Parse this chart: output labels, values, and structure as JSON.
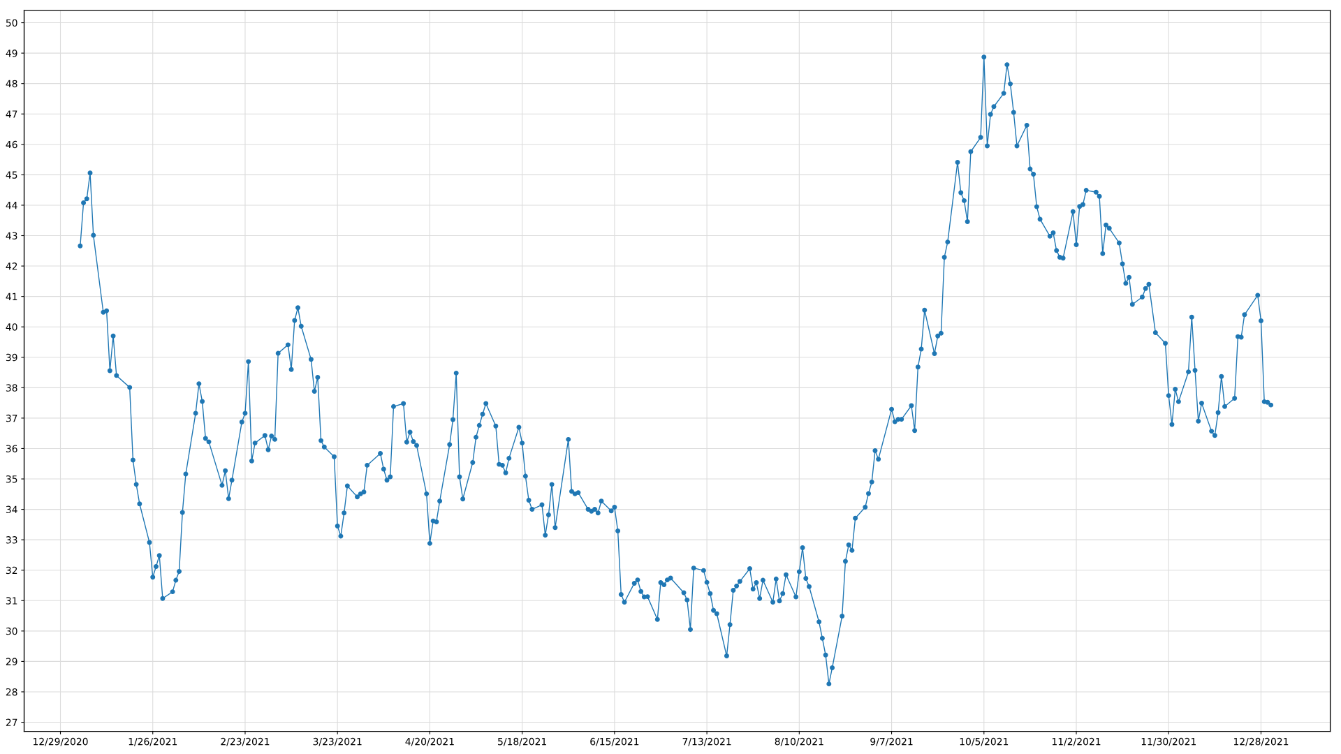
{
  "chart_data": {
    "type": "line",
    "marker": "circle",
    "line_style": "solid",
    "grid": true,
    "xlim": [
      "2020-12-18",
      "2022-01-18"
    ],
    "xticks": [
      {
        "value": "2020-12-29",
        "label": "12/29/2020"
      },
      {
        "value": "2021-01-26",
        "label": "1/26/2021"
      },
      {
        "value": "2021-02-23",
        "label": "2/23/2021"
      },
      {
        "value": "2021-03-23",
        "label": "3/23/2021"
      },
      {
        "value": "2021-04-20",
        "label": "4/20/2021"
      },
      {
        "value": "2021-05-18",
        "label": "5/18/2021"
      },
      {
        "value": "2021-06-15",
        "label": "6/15/2021"
      },
      {
        "value": "2021-07-13",
        "label": "7/13/2021"
      },
      {
        "value": "2021-08-10",
        "label": "8/10/2021"
      },
      {
        "value": "2021-09-07",
        "label": "9/7/2021"
      },
      {
        "value": "2021-10-05",
        "label": "10/5/2021"
      },
      {
        "value": "2021-11-02",
        "label": "11/2/2021"
      },
      {
        "value": "2021-11-30",
        "label": "11/30/2021"
      },
      {
        "value": "2021-12-28",
        "label": "12/28/2021"
      }
    ],
    "ylim": [
      26.7,
      50.4
    ],
    "yticks": [
      27,
      28,
      29,
      30,
      31,
      32,
      33,
      34,
      35,
      36,
      37,
      38,
      39,
      40,
      41,
      42,
      43,
      44,
      45,
      46,
      47,
      48,
      49,
      50
    ],
    "series": [
      {
        "color": "#1f77b4",
        "x": [
          "2021-01-04",
          "2021-01-05",
          "2021-01-06",
          "2021-01-07",
          "2021-01-08",
          "2021-01-11",
          "2021-01-12",
          "2021-01-13",
          "2021-01-14",
          "2021-01-15",
          "2021-01-19",
          "2021-01-20",
          "2021-01-21",
          "2021-01-22",
          "2021-01-25",
          "2021-01-26",
          "2021-01-27",
          "2021-01-28",
          "2021-01-29",
          "2021-02-01",
          "2021-02-02",
          "2021-02-03",
          "2021-02-04",
          "2021-02-05",
          "2021-02-08",
          "2021-02-09",
          "2021-02-10",
          "2021-02-11",
          "2021-02-12",
          "2021-02-16",
          "2021-02-17",
          "2021-02-18",
          "2021-02-19",
          "2021-02-22",
          "2021-02-23",
          "2021-02-24",
          "2021-02-25",
          "2021-02-26",
          "2021-03-01",
          "2021-03-02",
          "2021-03-03",
          "2021-03-04",
          "2021-03-05",
          "2021-03-08",
          "2021-03-09",
          "2021-03-10",
          "2021-03-11",
          "2021-03-12",
          "2021-03-15",
          "2021-03-16",
          "2021-03-17",
          "2021-03-18",
          "2021-03-19",
          "2021-03-22",
          "2021-03-23",
          "2021-03-24",
          "2021-03-25",
          "2021-03-26",
          "2021-03-29",
          "2021-03-30",
          "2021-03-31",
          "2021-04-01",
          "2021-04-05",
          "2021-04-06",
          "2021-04-07",
          "2021-04-08",
          "2021-04-09",
          "2021-04-12",
          "2021-04-13",
          "2021-04-14",
          "2021-04-15",
          "2021-04-16",
          "2021-04-19",
          "2021-04-20",
          "2021-04-21",
          "2021-04-22",
          "2021-04-23",
          "2021-04-26",
          "2021-04-27",
          "2021-04-28",
          "2021-04-29",
          "2021-04-30",
          "2021-05-03",
          "2021-05-04",
          "2021-05-05",
          "2021-05-06",
          "2021-05-07",
          "2021-05-10",
          "2021-05-11",
          "2021-05-12",
          "2021-05-13",
          "2021-05-14",
          "2021-05-17",
          "2021-05-18",
          "2021-05-19",
          "2021-05-20",
          "2021-05-21",
          "2021-05-24",
          "2021-05-25",
          "2021-05-26",
          "2021-05-27",
          "2021-05-28",
          "2021-06-01",
          "2021-06-02",
          "2021-06-03",
          "2021-06-04",
          "2021-06-07",
          "2021-06-08",
          "2021-06-09",
          "2021-06-10",
          "2021-06-11",
          "2021-06-14",
          "2021-06-15",
          "2021-06-16",
          "2021-06-17",
          "2021-06-18",
          "2021-06-21",
          "2021-06-22",
          "2021-06-23",
          "2021-06-24",
          "2021-06-25",
          "2021-06-28",
          "2021-06-29",
          "2021-06-30",
          "2021-07-01",
          "2021-07-02",
          "2021-07-06",
          "2021-07-07",
          "2021-07-08",
          "2021-07-09",
          "2021-07-12",
          "2021-07-13",
          "2021-07-14",
          "2021-07-15",
          "2021-07-16",
          "2021-07-19",
          "2021-07-20",
          "2021-07-21",
          "2021-07-22",
          "2021-07-23",
          "2021-07-26",
          "2021-07-27",
          "2021-07-28",
          "2021-07-29",
          "2021-07-30",
          "2021-08-02",
          "2021-08-03",
          "2021-08-04",
          "2021-08-05",
          "2021-08-06",
          "2021-08-09",
          "2021-08-10",
          "2021-08-11",
          "2021-08-12",
          "2021-08-13",
          "2021-08-16",
          "2021-08-17",
          "2021-08-18",
          "2021-08-19",
          "2021-08-20",
          "2021-08-23",
          "2021-08-24",
          "2021-08-25",
          "2021-08-26",
          "2021-08-27",
          "2021-08-30",
          "2021-08-31",
          "2021-09-01",
          "2021-09-02",
          "2021-09-03",
          "2021-09-07",
          "2021-09-08",
          "2021-09-09",
          "2021-09-10",
          "2021-09-13",
          "2021-09-14",
          "2021-09-15",
          "2021-09-16",
          "2021-09-17",
          "2021-09-20",
          "2021-09-21",
          "2021-09-22",
          "2021-09-23",
          "2021-09-24",
          "2021-09-27",
          "2021-09-28",
          "2021-09-29",
          "2021-09-30",
          "2021-10-01",
          "2021-10-04",
          "2021-10-05",
          "2021-10-06",
          "2021-10-07",
          "2021-10-08",
          "2021-10-11",
          "2021-10-12",
          "2021-10-13",
          "2021-10-14",
          "2021-10-15",
          "2021-10-18",
          "2021-10-19",
          "2021-10-20",
          "2021-10-21",
          "2021-10-22",
          "2021-10-25",
          "2021-10-26",
          "2021-10-27",
          "2021-10-28",
          "2021-10-29",
          "2021-11-01",
          "2021-11-02",
          "2021-11-03",
          "2021-11-04",
          "2021-11-05",
          "2021-11-08",
          "2021-11-09",
          "2021-11-10",
          "2021-11-11",
          "2021-11-12",
          "2021-11-15",
          "2021-11-16",
          "2021-11-17",
          "2021-11-18",
          "2021-11-19",
          "2021-11-22",
          "2021-11-23",
          "2021-11-24",
          "2021-11-26",
          "2021-11-29",
          "2021-11-30",
          "2021-12-01",
          "2021-12-02",
          "2021-12-03",
          "2021-12-06",
          "2021-12-07",
          "2021-12-08",
          "2021-12-09",
          "2021-12-10",
          "2021-12-13",
          "2021-12-14",
          "2021-12-15",
          "2021-12-16",
          "2021-12-17",
          "2021-12-20",
          "2021-12-21",
          "2021-12-22",
          "2021-12-23",
          "2021-12-27",
          "2021-12-28",
          "2021-12-29",
          "2021-12-30",
          "2021-12-31"
        ],
        "values": [
          42.66,
          44.08,
          44.21,
          45.06,
          43.01,
          40.48,
          40.53,
          38.56,
          39.7,
          38.4,
          38.01,
          35.62,
          34.82,
          34.18,
          32.91,
          31.77,
          32.12,
          32.48,
          31.07,
          31.29,
          31.67,
          31.96,
          33.9,
          35.16,
          37.16,
          38.13,
          37.55,
          36.33,
          36.22,
          34.79,
          35.27,
          34.35,
          34.96,
          36.87,
          37.16,
          38.86,
          35.59,
          36.18,
          36.43,
          35.96,
          36.41,
          36.3,
          39.13,
          39.41,
          38.6,
          40.21,
          40.63,
          40.02,
          38.93,
          37.88,
          38.34,
          36.26,
          36.05,
          35.73,
          33.45,
          33.12,
          33.88,
          34.77,
          34.41,
          34.51,
          34.57,
          35.45,
          35.84,
          35.32,
          34.96,
          35.07,
          37.38,
          37.48,
          36.21,
          36.54,
          36.23,
          36.1,
          34.51,
          32.88,
          33.62,
          33.59,
          34.27,
          36.13,
          36.95,
          38.48,
          35.07,
          34.34,
          35.54,
          36.37,
          36.76,
          37.13,
          37.48,
          36.74,
          35.48,
          35.45,
          35.2,
          35.68,
          36.7,
          36.18,
          35.09,
          34.3,
          34.0,
          34.15,
          33.15,
          33.82,
          34.82,
          33.4,
          36.3,
          34.59,
          34.51,
          34.55,
          34.0,
          33.94,
          34.0,
          33.88,
          34.27,
          33.95,
          34.07,
          33.29,
          31.2,
          30.95,
          31.57,
          31.68,
          31.3,
          31.12,
          31.13,
          30.38,
          31.59,
          31.52,
          31.68,
          31.74,
          31.26,
          31.02,
          30.05,
          32.07,
          31.99,
          31.6,
          31.23,
          30.68,
          30.57,
          29.18,
          30.21,
          31.34,
          31.48,
          31.63,
          32.05,
          31.38,
          31.59,
          31.07,
          31.67,
          30.95,
          31.71,
          30.99,
          31.23,
          31.85,
          31.12,
          31.95,
          32.74,
          31.73,
          31.46,
          30.3,
          29.76,
          29.21,
          28.26,
          28.79,
          30.49,
          32.29,
          32.83,
          32.65,
          33.71,
          34.07,
          34.52,
          34.9,
          35.93,
          35.65,
          37.29,
          36.88,
          36.96,
          36.96,
          37.41,
          36.59,
          38.68,
          39.27,
          40.55,
          39.12,
          39.7,
          39.79,
          42.29,
          42.79,
          45.41,
          44.41,
          44.15,
          43.46,
          45.76,
          46.23,
          48.87,
          45.95,
          46.99,
          47.24,
          47.68,
          48.62,
          47.99,
          47.05,
          45.95,
          46.63,
          45.19,
          45.02,
          43.95,
          43.54,
          42.98,
          43.09,
          42.51,
          42.29,
          42.26,
          43.79,
          42.7,
          43.96,
          44.02,
          44.49,
          44.43,
          44.29,
          42.41,
          43.35,
          43.24,
          42.76,
          42.07,
          41.43,
          41.63,
          40.74,
          40.98,
          41.26,
          41.4,
          39.81,
          39.46,
          37.74,
          36.79,
          37.95,
          37.54,
          38.52,
          40.32,
          38.57,
          36.9,
          37.49,
          36.57,
          36.43,
          37.18,
          38.37,
          37.38,
          37.65,
          39.68,
          39.66,
          40.4,
          41.04,
          40.2,
          37.54,
          37.52,
          37.43
        ]
      }
    ]
  }
}
